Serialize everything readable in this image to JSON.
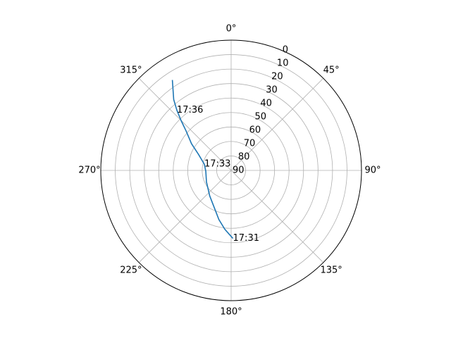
{
  "chart_data": {
    "type": "line",
    "projection": "polar",
    "theta_zero_location": "N",
    "theta_direction": "clockwise",
    "r_axis": {
      "inverted": true,
      "range": [
        90,
        0
      ],
      "ticks": [
        0,
        10,
        20,
        30,
        40,
        50,
        60,
        70,
        80,
        90
      ],
      "tick_labels": [
        "0",
        "10",
        "20",
        "30",
        "40",
        "50",
        "60",
        "70",
        "80",
        "90"
      ],
      "label_angle_deg": 22.5
    },
    "theta_axis": {
      "ticks_deg": [
        0,
        45,
        90,
        135,
        180,
        225,
        270,
        315
      ],
      "tick_labels": [
        "0°",
        "45°",
        "90°",
        "135°",
        "180°",
        "225°",
        "270°",
        "315°"
      ]
    },
    "grid": true,
    "series": [
      {
        "color": "#1f77b4",
        "azimuth_deg": [
          178.5,
          186.0,
          194.0,
          201.0,
          220.0,
          245.0,
          268.0,
          283.0,
          296.0,
          304.0,
          311.0,
          315.0,
          318.0,
          321.0,
          327.0
        ],
        "elevation_deg": [
          43.0,
          49.0,
          55.0,
          60.0,
          67.0,
          71.2,
          72.5,
          71.0,
          65.0,
          57.0,
          49.0,
          41.0,
          34.0,
          27.0,
          15.5
        ]
      }
    ],
    "annotations": [
      {
        "text": "17:31",
        "azimuth_deg": 178.5,
        "elevation_deg": 43.0
      },
      {
        "text": "17:33",
        "azimuth_deg": 283.0,
        "elevation_deg": 71.0
      },
      {
        "text": "17:36",
        "azimuth_deg": 318.0,
        "elevation_deg": 34.0
      }
    ]
  }
}
